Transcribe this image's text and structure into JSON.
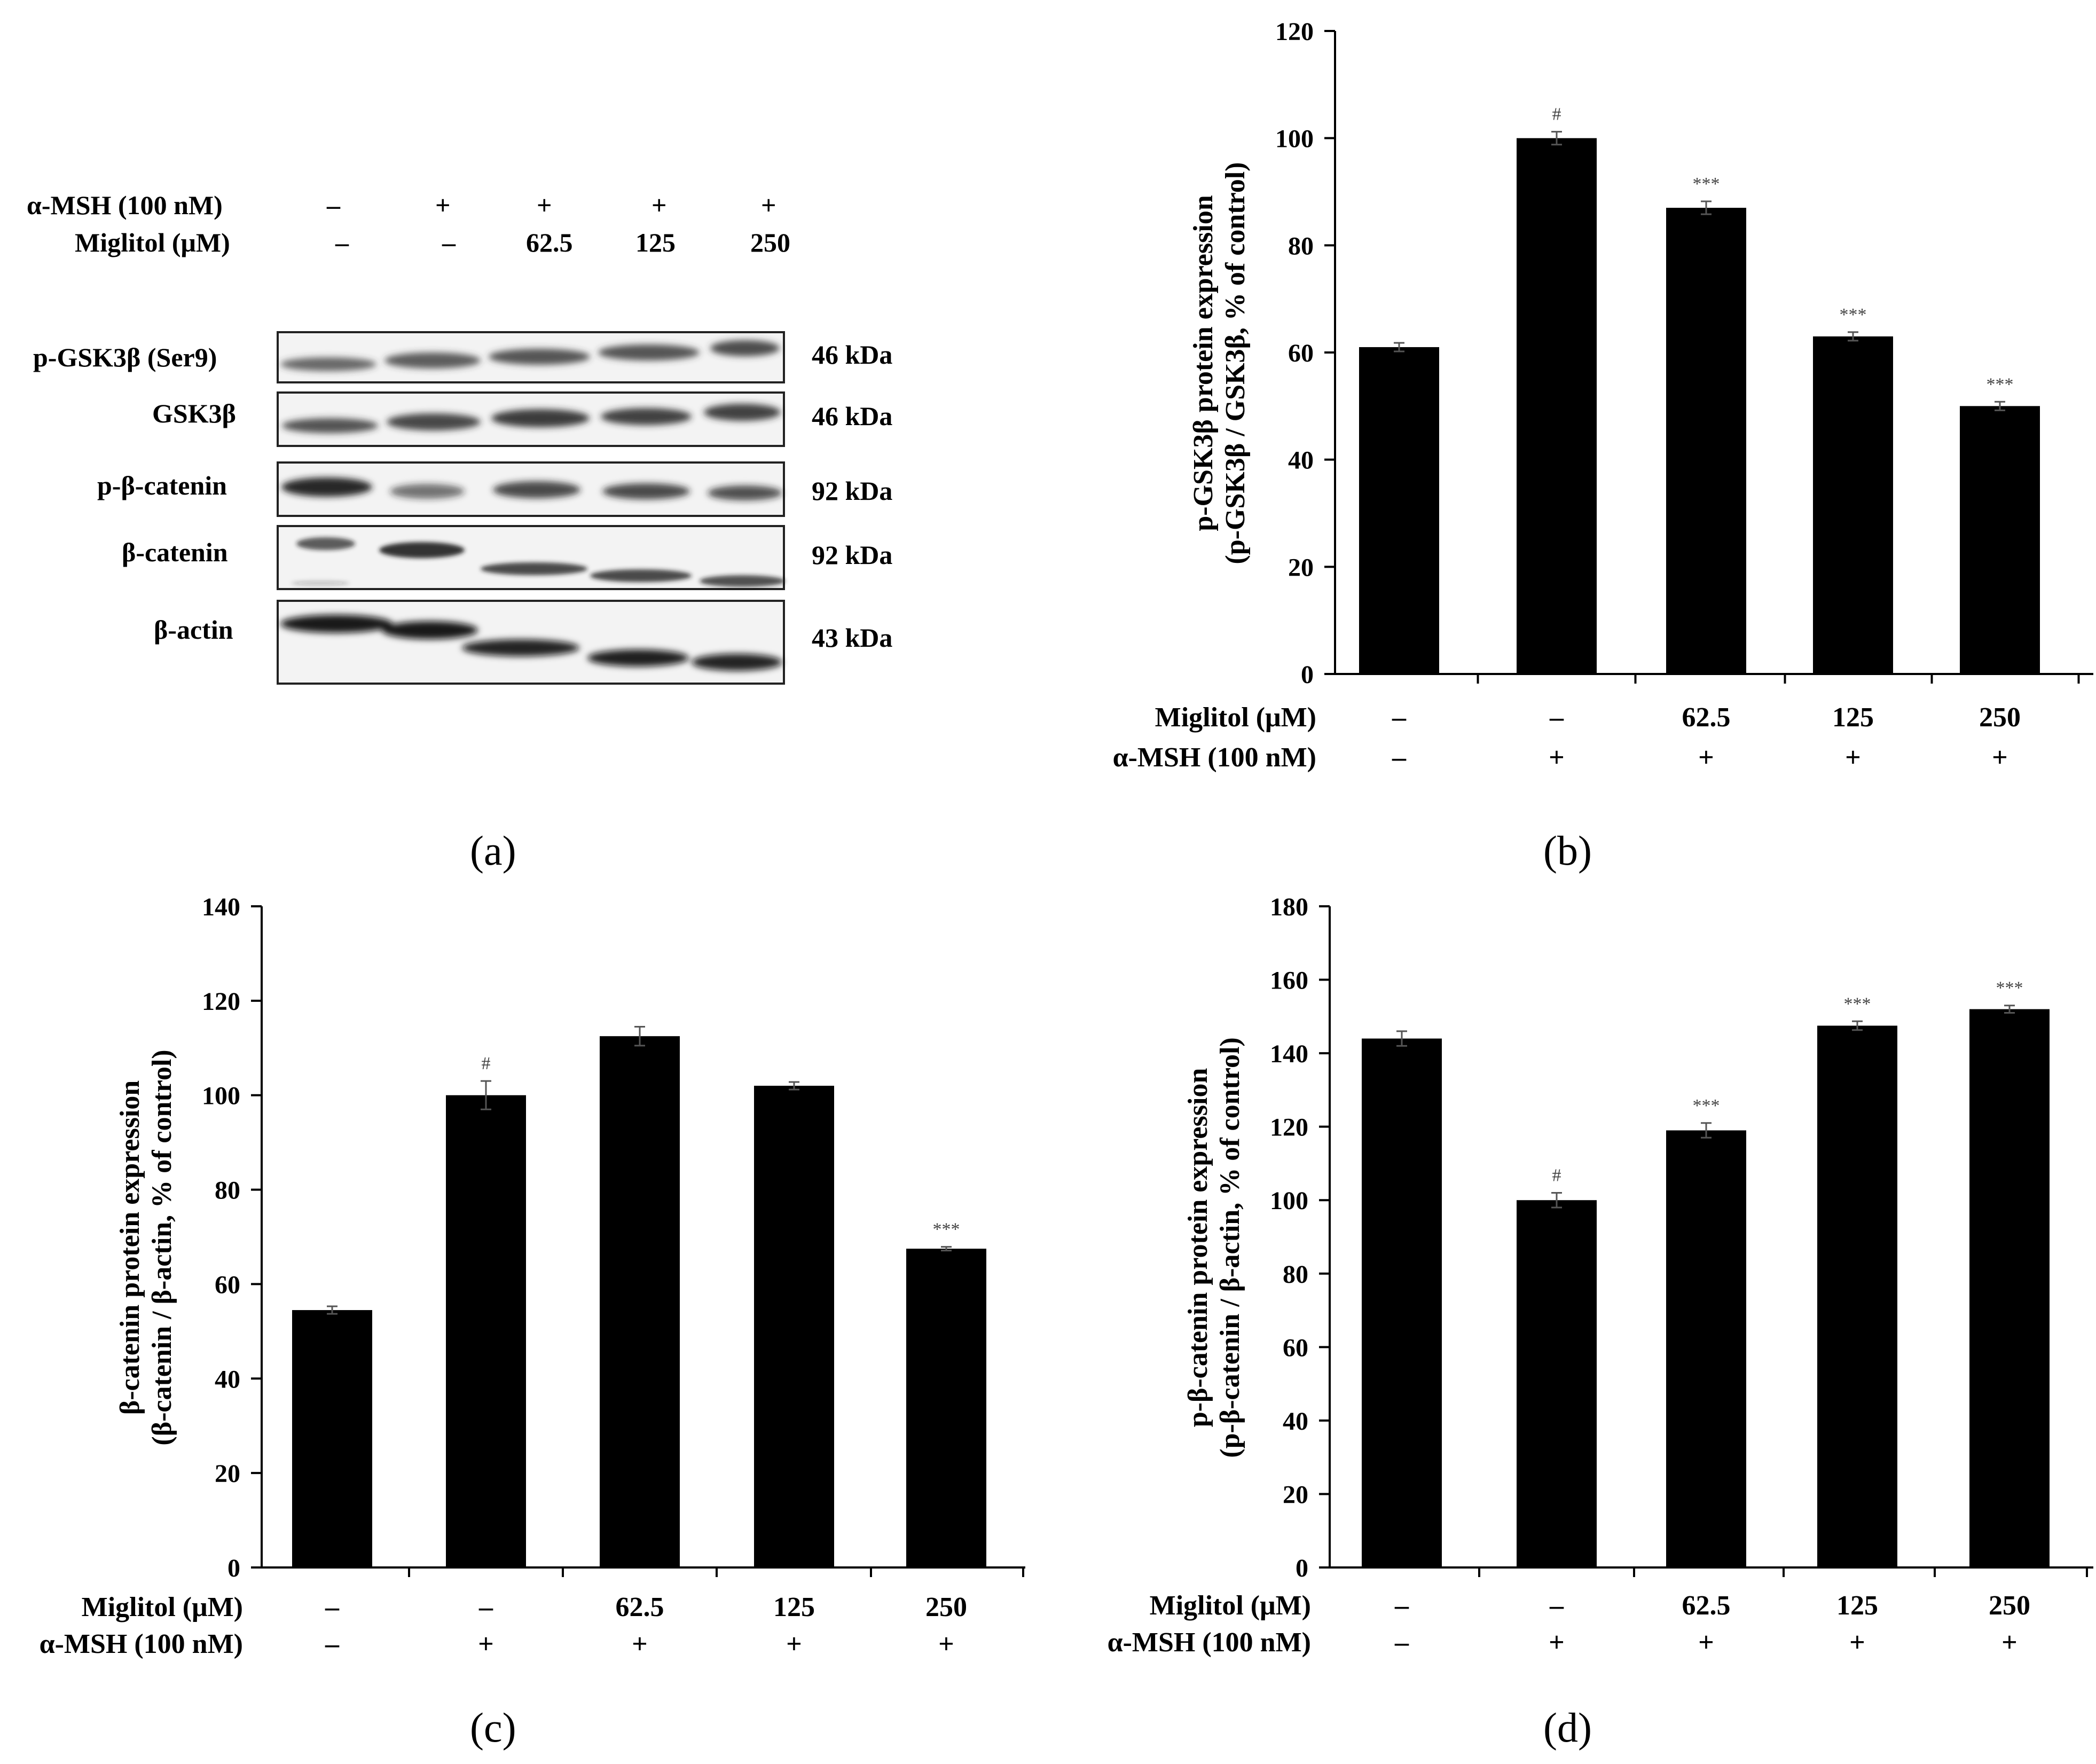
{
  "figure": {
    "panel_labels": [
      "(a)",
      "(b)",
      "(c)",
      "(d)"
    ]
  },
  "western_blot": {
    "treatments": [
      {
        "label": "α-MSH (100 nM)",
        "values": [
          "–",
          "+",
          "+",
          "+",
          "+"
        ]
      },
      {
        "label": "Miglitol (μM)",
        "values": [
          "–",
          "–",
          "62.5",
          "125",
          "250"
        ]
      }
    ],
    "bands": [
      {
        "name": "p-GSK3β (Ser9)",
        "size": "46 kDa"
      },
      {
        "name": "GSK3β",
        "size": "46 kDa"
      },
      {
        "name": "p-β-catenin",
        "size": "92 kDa"
      },
      {
        "name": "β-catenin",
        "size": "92 kDa"
      },
      {
        "name": "β-actin",
        "size": "43 kDa"
      }
    ]
  },
  "chart_data": [
    {
      "id": "b",
      "type": "bar",
      "title": "",
      "ylabel": [
        "p-GSK3β protein expression",
        "(p-GSK3β / GSK3β, % of control)"
      ],
      "ylim": [
        0,
        120
      ],
      "yticks": [
        0,
        20,
        40,
        60,
        80,
        100,
        120
      ],
      "categories": [
        "1",
        "2",
        "3",
        "4",
        "5"
      ],
      "values": [
        61,
        100,
        87,
        63,
        50
      ],
      "errors": [
        0.8,
        1.2,
        1.2,
        0.8,
        0.8
      ],
      "annotations": [
        "",
        "#",
        "***",
        "***",
        "***"
      ],
      "treatment_rows": [
        {
          "label": "Miglitol (μM)",
          "values": [
            "–",
            "–",
            "62.5",
            "125",
            "250"
          ]
        },
        {
          "label": "α-MSH (100 nM)",
          "values": [
            "–",
            "+",
            "+",
            "+",
            "+"
          ]
        }
      ]
    },
    {
      "id": "c",
      "type": "bar",
      "title": "",
      "ylabel": [
        "β-catenin protein expression",
        "(β-catenin / β-actin, % of control)"
      ],
      "ylim": [
        0,
        140
      ],
      "yticks": [
        0,
        20,
        40,
        60,
        80,
        100,
        120,
        140
      ],
      "categories": [
        "1",
        "2",
        "3",
        "4",
        "5"
      ],
      "values": [
        54.5,
        100,
        112.5,
        102,
        67.5
      ],
      "errors": [
        0.8,
        3,
        2,
        0.8,
        0.4
      ],
      "annotations": [
        "",
        "#",
        "",
        "",
        "***"
      ],
      "treatment_rows": [
        {
          "label": "Miglitol (μM)",
          "values": [
            "–",
            "–",
            "62.5",
            "125",
            "250"
          ]
        },
        {
          "label": "α-MSH (100 nM)",
          "values": [
            "–",
            "+",
            "+",
            "+",
            "+"
          ]
        }
      ]
    },
    {
      "id": "d",
      "type": "bar",
      "title": "",
      "ylabel": [
        "p-β-catenin protein expression",
        "(p-β-catenin / β-actin, % of control)"
      ],
      "ylim": [
        0,
        180
      ],
      "yticks": [
        0,
        20,
        40,
        60,
        80,
        100,
        120,
        140,
        160,
        180
      ],
      "categories": [
        "1",
        "2",
        "3",
        "4",
        "5"
      ],
      "values": [
        144,
        100,
        119,
        147.5,
        152
      ],
      "errors": [
        2,
        2,
        2,
        1.2,
        1
      ],
      "annotations": [
        "",
        "#",
        "***",
        "***",
        "***"
      ],
      "treatment_rows": [
        {
          "label": "Miglitol (μM)",
          "values": [
            "–",
            "–",
            "62.5",
            "125",
            "250"
          ]
        },
        {
          "label": "α-MSH (100 nM)",
          "values": [
            "–",
            "+",
            "+",
            "+",
            "+"
          ]
        }
      ]
    }
  ]
}
